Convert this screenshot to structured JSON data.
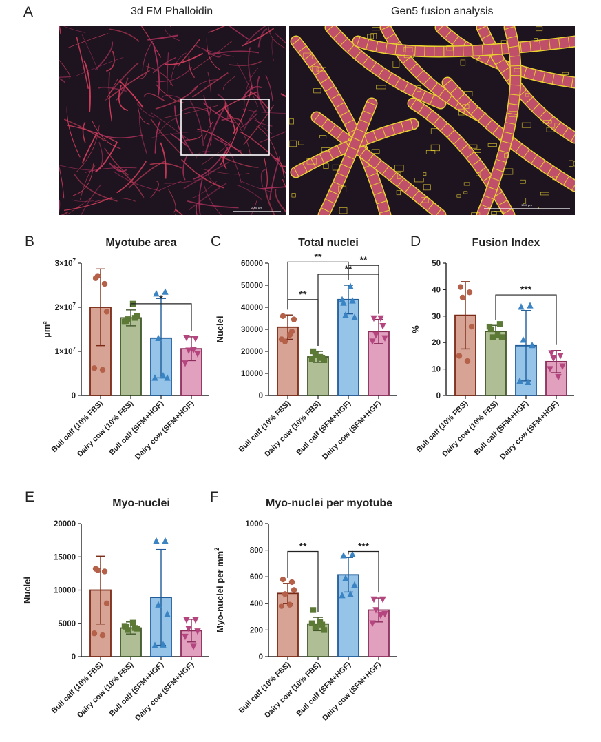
{
  "panel_a": {
    "letter": "A",
    "left_title": "3d FM Phalloidin",
    "right_title": "Gen5 fusion analysis",
    "left_scalebar_text": "2000 µm",
    "right_scalebar_text": "1000 µm"
  },
  "colors": {
    "bull_fbs_fill": "#D7A394",
    "bull_fbs_edge": "#7A2A14",
    "bull_fbs_point": "#B5614A",
    "dairy_fbs_fill": "#AFBE95",
    "dairy_fbs_edge": "#40582A",
    "dairy_fbs_point": "#5C7A36",
    "bull_sfm_fill": "#95C4E8",
    "bull_sfm_edge": "#1F5C99",
    "bull_sfm_point": "#3B84C4",
    "dairy_sfm_fill": "#E0A0BE",
    "dairy_sfm_edge": "#8C2D5C",
    "dairy_sfm_point": "#B5457E",
    "image_background": "#1E1420",
    "myotube": "#D8405E",
    "outline": "#E8D030"
  },
  "chart_data": [
    {
      "id": "B",
      "letter": "B",
      "type": "bar",
      "title": "Myotube area",
      "ylabel": "µm²",
      "categories": [
        "Bull calf (10% FBS)",
        "Dairy cow (10% FBS)",
        "Bull calf (SFM+HGF)",
        "Dairy cow (SFM+HGF)"
      ],
      "ylim": [
        0,
        30000000
      ],
      "yticks": [
        0,
        10000000,
        20000000,
        30000000
      ],
      "yticklabels": [
        "0",
        "1×10",
        "2×10",
        "3×10"
      ],
      "ytick_exponent": "7",
      "values": [
        20000000,
        17600000,
        13000000,
        10600000
      ],
      "sd": [
        8700000,
        1800000,
        9000000,
        2700000
      ],
      "points": [
        [
          26600000,
          25300000,
          27100000,
          19000000,
          6200000,
          5800000
        ],
        [
          16800000,
          17600000,
          17300000,
          18000000,
          16700000,
          20800000
        ],
        [
          23100000,
          23500000,
          13000000,
          4000000,
          4000000,
          4500000
        ],
        [
          13100000,
          12900000,
          10200000,
          9400000,
          7300000,
          10300000
        ]
      ],
      "markers": [
        "circle",
        "square",
        "triangle",
        "triangle-down"
      ],
      "significance": [
        {
          "a": 1,
          "b": 3,
          "label": "*",
          "y": 20800000
        }
      ]
    },
    {
      "id": "C",
      "letter": "C",
      "type": "bar",
      "title": "Total nuclei",
      "ylabel": "Nuclei",
      "categories": [
        "Bull calf (10% FBS)",
        "Dairy cow (10% FBS)",
        "Bull calf (SFM+HGF)",
        "Dairy cow (SFM+HGF)"
      ],
      "ylim": [
        0,
        60000
      ],
      "yticks": [
        0,
        10000,
        20000,
        30000,
        40000,
        50000,
        60000
      ],
      "yticklabels": [
        "0",
        "10000",
        "20000",
        "30000",
        "40000",
        "50000",
        "60000"
      ],
      "values": [
        31000,
        17500,
        43500,
        29000
      ],
      "sd": [
        5500,
        2500,
        6500,
        5500
      ],
      "points": [
        [
          36000,
          29000,
          24500,
          34500,
          25500,
          27500
        ],
        [
          20000,
          17000,
          18500,
          16000,
          16500,
          17500
        ],
        [
          42000,
          43000,
          36500,
          35500,
          43500,
          49500
        ],
        [
          35000,
          31500,
          27500,
          26000,
          24500,
          35000
        ]
      ],
      "markers": [
        "circle",
        "square",
        "triangle",
        "triangle-down"
      ],
      "significance": [
        {
          "a": 0,
          "b": 1,
          "label": "**",
          "y": 43500
        },
        {
          "a": 1,
          "b": 3,
          "label": "**",
          "y": 55000
        },
        {
          "a": 0,
          "b": 2,
          "label": "**",
          "y": 60500
        },
        {
          "a": 2,
          "b": 3,
          "label": "**",
          "y": 59000
        }
      ]
    },
    {
      "id": "D",
      "letter": "D",
      "type": "bar",
      "title": "Fusion Index",
      "ylabel": "%",
      "categories": [
        "Bull calf (10% FBS)",
        "Dairy cow (10% FBS)",
        "Bull calf (SFM+HGF)",
        "Dairy cow (SFM+HGF)"
      ],
      "ylim": [
        0,
        50
      ],
      "yticks": [
        0,
        10,
        20,
        30,
        40,
        50
      ],
      "yticklabels": [
        "0",
        "10",
        "20",
        "30",
        "40",
        "50"
      ],
      "values": [
        30.3,
        24.2,
        18.8,
        12.8
      ],
      "sd": [
        12.7,
        2.3,
        13.3,
        4.2
      ],
      "points": [
        [
          41,
          39,
          37,
          26,
          15,
          13
        ],
        [
          25,
          27,
          22,
          22,
          26,
          23
        ],
        [
          33.5,
          34,
          21,
          19,
          5.5,
          5
        ],
        [
          16,
          15,
          14,
          11,
          10,
          7
        ]
      ],
      "markers": [
        "circle",
        "square",
        "triangle",
        "triangle-down"
      ],
      "significance": [
        {
          "a": 1,
          "b": 3,
          "label": "***",
          "y": 38
        }
      ]
    },
    {
      "id": "E",
      "letter": "E",
      "type": "bar",
      "title": "Myo-nuclei",
      "ylabel": "Nuclei",
      "categories": [
        "Bull calf (10% FBS)",
        "Dairy cow (10% FBS)",
        "Bull calf (SFM+HGF)",
        "Dairy cow (SFM+HGF)"
      ],
      "ylim": [
        0,
        20000
      ],
      "yticks": [
        0,
        5000,
        10000,
        15000,
        20000
      ],
      "yticklabels": [
        "0",
        "5000",
        "10000",
        "15000",
        "20000"
      ],
      "values": [
        10000,
        4300,
        8900,
        3900
      ],
      "sd": [
        5100,
        900,
        7200,
        1700
      ],
      "points": [
        [
          13200,
          12800,
          13000,
          8000,
          3500,
          3200
        ],
        [
          4500,
          4300,
          4000,
          4200,
          4600,
          5100
        ],
        [
          17400,
          17400,
          7800,
          6400,
          1700,
          1800
        ],
        [
          5500,
          5500,
          4200,
          3800,
          3000,
          1500
        ]
      ],
      "markers": [
        "circle",
        "square",
        "triangle",
        "triangle-down"
      ],
      "significance": []
    },
    {
      "id": "F",
      "letter": "F",
      "type": "bar",
      "title": "Myo-nuclei per myotube",
      "ylabel": "Myo-nuclei per mm",
      "ylabel_sup": "2",
      "categories": [
        "Bull calf (10% FBS)",
        "Dairy cow (10% FBS)",
        "Bull calf (SFM+HGF)",
        "Dairy cow (SFM+HGF)"
      ],
      "ylim": [
        0,
        1000
      ],
      "yticks": [
        0,
        200,
        400,
        600,
        800,
        1000
      ],
      "yticklabels": [
        "0",
        "200",
        "400",
        "600",
        "800",
        "1000"
      ],
      "values": [
        475,
        245,
        615,
        350
      ],
      "sd": [
        75,
        50,
        130,
        90
      ],
      "points": [
        [
          580,
          560,
          470,
          500,
          380,
          390
        ],
        [
          350,
          240,
          220,
          200,
          250,
          260
        ],
        [
          760,
          770,
          590,
          540,
          460,
          470
        ],
        [
          430,
          430,
          350,
          320,
          250,
          310
        ]
      ],
      "markers": [
        "circle",
        "square",
        "triangle",
        "triangle-down"
      ],
      "significance": [
        {
          "a": 0,
          "b": 1,
          "label": "**",
          "y": 790
        },
        {
          "a": 2,
          "b": 3,
          "label": "***",
          "y": 790
        }
      ]
    }
  ]
}
